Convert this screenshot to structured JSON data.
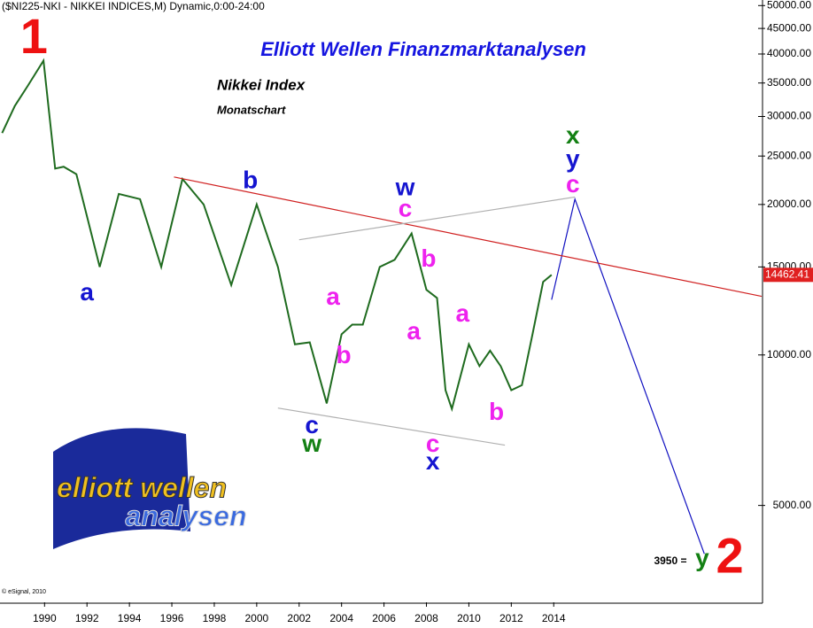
{
  "chart_data": {
    "type": "line",
    "log_scale": true,
    "grid": false,
    "header": "($NI225-NKI - NIKKEI INDICES,M) Dynamic,0:00-24:00",
    "title": "Elliott Wellen Finanzmarktanalysen",
    "subtitle": "Nikkei Index",
    "subtitle2": "Monatschart",
    "copyright": "© eSignal, 2010",
    "logo": [
      "elliott wellen",
      "analysen"
    ],
    "xlim": [
      1987.9,
      2023.8
    ],
    "xticks": [
      1990,
      1992,
      1994,
      1996,
      1998,
      2000,
      2002,
      2004,
      2006,
      2008,
      2010,
      2012,
      2014
    ],
    "ylim": [
      3200,
      51300
    ],
    "yticks": [
      {
        "value": 5000,
        "label": "5000.00"
      },
      {
        "value": 10000,
        "label": "10000.00"
      },
      {
        "value": 15000,
        "label": "15000.00"
      },
      {
        "value": 20000,
        "label": "20000.00"
      },
      {
        "value": 25000,
        "label": "25000.00"
      },
      {
        "value": 30000,
        "label": "30000.00"
      },
      {
        "value": 35000,
        "label": "35000.00"
      },
      {
        "value": 40000,
        "label": "40000.00"
      },
      {
        "value": 45000,
        "label": "45000.00"
      },
      {
        "value": 50000,
        "label": "50000.00"
      }
    ],
    "last_price": 14462.41,
    "series": [
      {
        "color": "#1f6b1f",
        "x": [
          1988.0,
          1988.6,
          1989.2,
          1989.95,
          1990.5,
          1990.9,
          1991.5,
          1992.6,
          1993.5,
          1994.5,
          1995.5,
          1996.5,
          1997.5,
          1998.8,
          2000.0,
          2001.0,
          2001.8,
          2002.5,
          2003.3,
          2004.0,
          2004.5,
          2005.0,
          2005.8,
          2006.5,
          2007.3,
          2008.0,
          2008.5,
          2008.9,
          2009.2,
          2010.0,
          2010.5,
          2011.0,
          2011.5,
          2012.0,
          2012.5,
          2013.0,
          2013.5,
          2013.9
        ],
        "values": [
          27800,
          31500,
          34500,
          38800,
          23600,
          23800,
          23000,
          15000,
          21000,
          20500,
          15000,
          22500,
          20000,
          13800,
          20000,
          15000,
          10500,
          10600,
          8000,
          11000,
          11500,
          11500,
          15000,
          15500,
          17500,
          13500,
          13000,
          8500,
          7800,
          10500,
          9500,
          10200,
          9500,
          8500,
          8700,
          11000,
          14000,
          14462
        ]
      },
      {
        "color": "#1010c0",
        "x": [
          2013.9,
          2015.0,
          2021.1
        ],
        "values": [
          12900,
          20500,
          4000
        ]
      },
      {
        "color": "#d02020",
        "x": [
          1996.1,
          2023.8
        ],
        "values": [
          22700,
          13100
        ]
      },
      {
        "color": "#b0b0b0",
        "x": [
          2002.0,
          2015.0
        ],
        "values": [
          17000,
          20700
        ]
      },
      {
        "color": "#b0b0b0",
        "x": [
          2001.0,
          2011.7
        ],
        "values": [
          7830,
          6600
        ]
      }
    ],
    "annotations": [
      {
        "text": "1",
        "color": "#ee1111",
        "x": 1989.5,
        "y": 42700,
        "size": "large"
      },
      {
        "text": "a",
        "color": "#1515d0",
        "x": 1992.0,
        "y": 13250,
        "size": "normal"
      },
      {
        "text": "b",
        "color": "#1515d0",
        "x": 1999.7,
        "y": 22200,
        "size": "normal"
      },
      {
        "text": "c",
        "color": "#1515d0",
        "x": 2002.6,
        "y": 7190,
        "size": "normal"
      },
      {
        "text": "w",
        "color": "#138013",
        "x": 2002.6,
        "y": 6600,
        "size": "normal"
      },
      {
        "text": "w",
        "color": "#1515d0",
        "x": 2007.0,
        "y": 21500,
        "size": "normal"
      },
      {
        "text": "c",
        "color": "#ee22ee",
        "x": 2007.0,
        "y": 19500,
        "size": "normal"
      },
      {
        "text": "a",
        "color": "#ee22ee",
        "x": 2003.6,
        "y": 13000,
        "size": "normal"
      },
      {
        "text": "b",
        "color": "#ee22ee",
        "x": 2004.1,
        "y": 9920,
        "size": "normal"
      },
      {
        "text": "b",
        "color": "#ee22ee",
        "x": 2008.1,
        "y": 15470,
        "size": "normal"
      },
      {
        "text": "a",
        "color": "#ee22ee",
        "x": 2007.4,
        "y": 11070,
        "size": "normal"
      },
      {
        "text": "a",
        "color": "#ee22ee",
        "x": 2009.7,
        "y": 12010,
        "size": "normal"
      },
      {
        "text": "c",
        "color": "#ee22ee",
        "x": 2008.3,
        "y": 6600,
        "size": "normal"
      },
      {
        "text": "x",
        "color": "#1515d0",
        "x": 2008.3,
        "y": 6080,
        "size": "normal"
      },
      {
        "text": "b",
        "color": "#ee22ee",
        "x": 2011.3,
        "y": 7640,
        "size": "normal"
      },
      {
        "text": "x",
        "color": "#138013",
        "x": 2014.9,
        "y": 27300,
        "size": "normal"
      },
      {
        "text": "y",
        "color": "#1515d0",
        "x": 2014.9,
        "y": 24500,
        "size": "normal"
      },
      {
        "text": "c",
        "color": "#ee22ee",
        "x": 2014.9,
        "y": 21800,
        "size": "normal"
      },
      {
        "text": "3950 =",
        "color": "#000000",
        "x": 2019.5,
        "y": 3860,
        "size": "small"
      },
      {
        "text": "y",
        "color": "#138013",
        "x": 2021.0,
        "y": 3900,
        "size": "normal"
      },
      {
        "text": "2",
        "color": "#ee1111",
        "x": 2022.3,
        "y": 3900,
        "size": "large"
      }
    ]
  }
}
